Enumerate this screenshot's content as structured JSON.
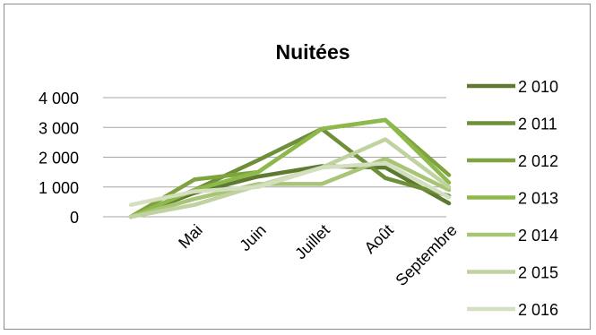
{
  "chart_data": {
    "type": "line",
    "title": "Nuitées",
    "xlabel": "",
    "ylabel": "",
    "categories": [
      "",
      "Mai",
      "Juin",
      "Juillet",
      "Août",
      "Septembre"
    ],
    "y_ticks": [
      "0",
      "1 000",
      "2 000",
      "3 000",
      "4 000"
    ],
    "ylim": [
      0,
      4000
    ],
    "grid": true,
    "legend_position": "right",
    "series": [
      {
        "name": "2 010",
        "color": "#5e7a30",
        "values": [
          0,
          800,
          1350,
          1700,
          1650,
          450
        ]
      },
      {
        "name": "2 011",
        "color": "#6e8f38",
        "values": [
          0,
          900,
          1900,
          2950,
          1300,
          700
        ]
      },
      {
        "name": "2 012",
        "color": "#7fa33f",
        "values": [
          0,
          1250,
          1500,
          2950,
          3250,
          1400
        ]
      },
      {
        "name": "2 013",
        "color": "#8db84a",
        "values": [
          0,
          900,
          1500,
          2950,
          3250,
          1150
        ]
      },
      {
        "name": "2 014",
        "color": "#a8c477",
        "values": [
          0,
          600,
          1100,
          1100,
          1950,
          900
        ]
      },
      {
        "name": "2 015",
        "color": "#c0d2a0",
        "values": [
          0,
          400,
          1050,
          1650,
          2600,
          1000
        ]
      },
      {
        "name": "2 016",
        "color": "#d4dfc0",
        "values": [
          400,
          850,
          1000,
          1650,
          1800,
          650
        ]
      }
    ]
  }
}
